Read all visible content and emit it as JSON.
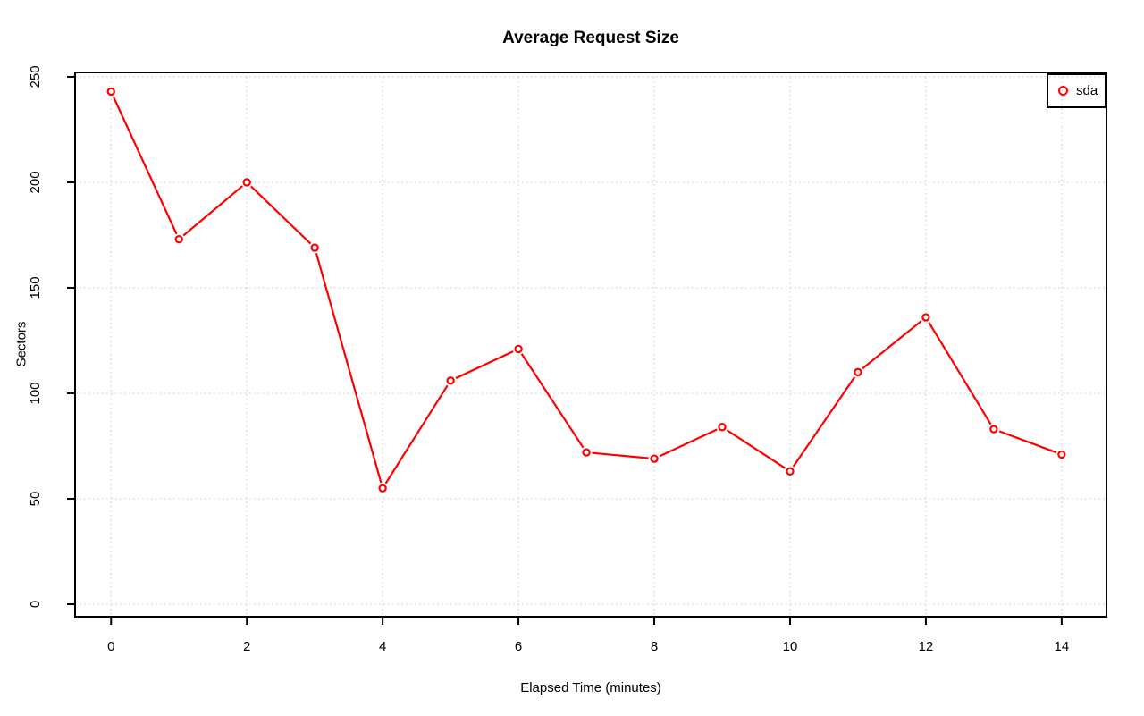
{
  "chart_data": {
    "type": "line",
    "title": "Average Request Size",
    "xlabel": "Elapsed Time (minutes)",
    "ylabel": "Sectors",
    "x": [
      0,
      1,
      2,
      3,
      4,
      5,
      6,
      7,
      8,
      9,
      10,
      11,
      12,
      13,
      14
    ],
    "series": [
      {
        "name": "sda",
        "color": "#ff0000",
        "marker": "open-circle",
        "values": [
          243,
          173,
          200,
          169,
          55,
          106,
          121,
          72,
          69,
          84,
          63,
          110,
          136,
          83,
          71
        ]
      }
    ],
    "xticks": [
      0,
      2,
      4,
      6,
      8,
      10,
      12,
      14
    ],
    "yticks": [
      0,
      50,
      100,
      150,
      200,
      250
    ],
    "xlim": [
      -0.53,
      14.66
    ],
    "ylim": [
      -5.93,
      252.1
    ],
    "grid": true,
    "grid_style": "dotted",
    "grid_color": "#d2d2d2",
    "axis_color": "#000000",
    "background": "#ffffff",
    "legend_position": "top-right"
  }
}
